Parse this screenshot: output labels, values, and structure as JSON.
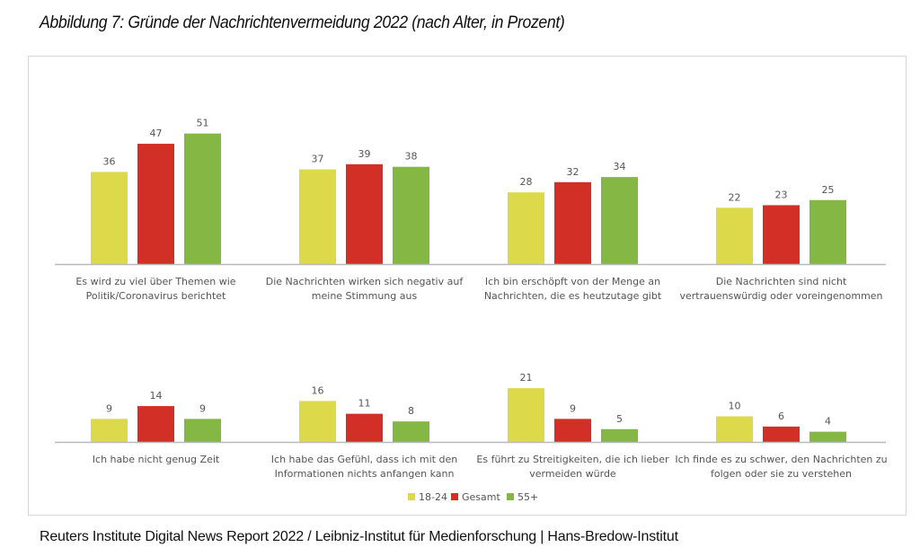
{
  "chart_data": {
    "type": "bar",
    "title": "Abbildung 7: Gründe der Nachrichtenvermeidung 2022 (nach Alter, in Prozent)",
    "xlabel": "",
    "ylabel": "",
    "ylim": [
      0,
      55
    ],
    "grid": false,
    "legend_position": "bottom-center",
    "series": [
      {
        "name": "18-24",
        "color": "#dcd94a",
        "values": [
          36,
          37,
          28,
          22,
          9,
          16,
          21,
          10
        ]
      },
      {
        "name": "Gesamt",
        "color": "#d22f27",
        "values": [
          47,
          39,
          32,
          23,
          14,
          11,
          9,
          6
        ]
      },
      {
        "name": "55+",
        "color": "#84b744",
        "values": [
          51,
          38,
          34,
          25,
          9,
          8,
          5,
          4
        ]
      }
    ],
    "categories": [
      [
        "Es wird zu viel über Themen wie",
        "Politik/Coronavirus berichtet"
      ],
      [
        "Die Nachrichten wirken sich negativ auf",
        "meine Stimmung aus"
      ],
      [
        "Ich bin erschöpft von der Menge an",
        "Nachrichten, die es heutzutage gibt"
      ],
      [
        "Die Nachrichten sind nicht",
        "vertrauenswürdig oder voreingenommen"
      ],
      [
        "Ich habe nicht genug Zeit"
      ],
      [
        "Ich habe das Gefühl, dass ich mit den",
        "Informationen nichts anfangen kann"
      ],
      [
        "Es führt zu Streitigkeiten, die ich lieber",
        "vermeiden würde"
      ],
      [
        "Ich finde es zu schwer, den Nachrichten zu",
        "folgen oder sie zu verstehen"
      ]
    ],
    "panels": [
      {
        "name": "top-row",
        "category_indices": [
          0,
          1,
          2,
          3
        ]
      },
      {
        "name": "bottom-row",
        "category_indices": [
          4,
          5,
          6,
          7
        ]
      }
    ]
  },
  "source": "Reuters Institute Digital News Report 2022 / Leibniz-Institut für Medienforschung | Hans-Bredow-Institut"
}
